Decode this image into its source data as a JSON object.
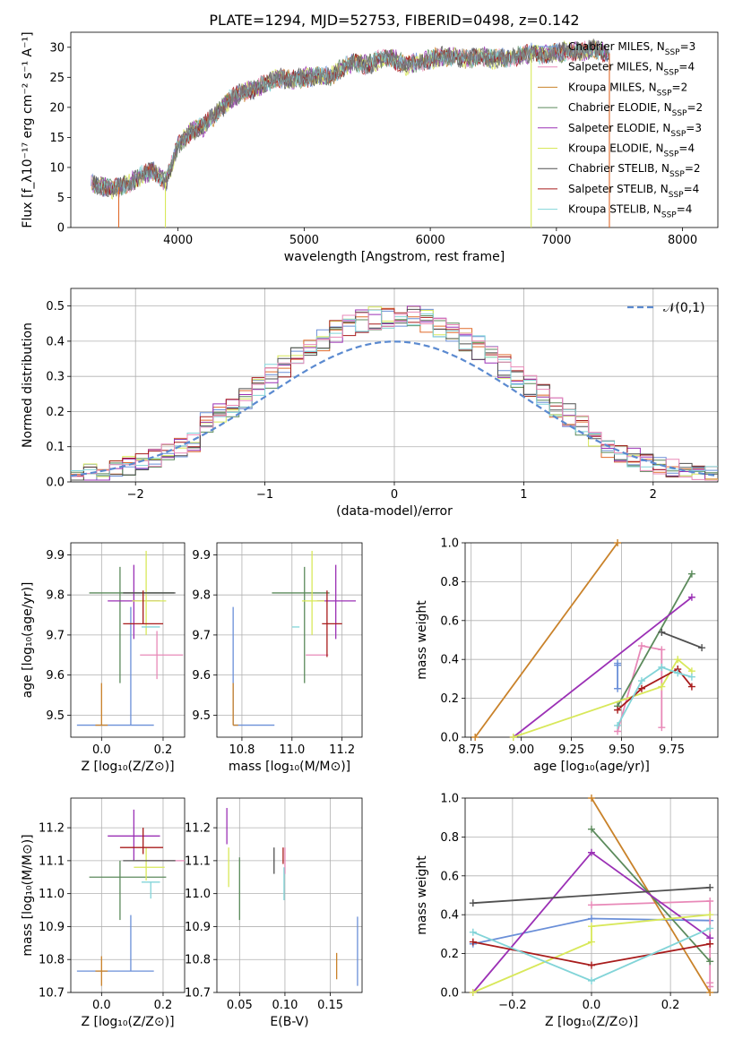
{
  "chart_data": [
    {
      "id": "spectrum",
      "type": "line",
      "title": "PLATE=1294, MJD=52753, FIBERID=0498, z=0.142",
      "xlabel": "wavelength [Angstrom, rest frame]",
      "ylabel": "Flux [f_λ10⁻¹⁷ erg cm⁻² s⁻¹ A⁻¹]",
      "xlim": [
        3150,
        8280
      ],
      "ylim": [
        0,
        32.5
      ],
      "xticks": [
        4000,
        5000,
        6000,
        7000,
        8000
      ],
      "yticks": [
        0,
        5,
        10,
        15,
        20,
        25,
        30
      ],
      "grid": false,
      "legend_position": "right",
      "legend": [
        {
          "label": "Chabrier MILES, N_SSP=3",
          "main": "Chabrier MILES, N",
          "sub": "SSP",
          "suffix": "=3",
          "color": "#6a8fd8"
        },
        {
          "label": "Salpeter MILES, N_SSP=4",
          "main": "Salpeter MILES, N",
          "sub": "SSP",
          "suffix": "=4",
          "color": "#e889b8"
        },
        {
          "label": "Kroupa MILES, N_SSP=2",
          "main": "Kroupa MILES, N",
          "sub": "SSP",
          "suffix": "=2",
          "color": "#c9822a"
        },
        {
          "label": "Chabrier ELODIE, N_SSP=2",
          "main": "Chabrier ELODIE, N",
          "sub": "SSP",
          "suffix": "=2",
          "color": "#5b8a5b"
        },
        {
          "label": "Salpeter ELODIE, N_SSP=3",
          "main": "Salpeter ELODIE, N",
          "sub": "SSP",
          "suffix": "=3",
          "color": "#9b30b5"
        },
        {
          "label": "Kroupa ELODIE, N_SSP=4",
          "main": "Kroupa ELODIE, N",
          "sub": "SSP",
          "suffix": "=4",
          "color": "#d8e85a"
        },
        {
          "label": "Chabrier STELIB, N_SSP=2",
          "main": "Chabrier STELIB, N",
          "sub": "SSP",
          "suffix": "=2",
          "color": "#505050"
        },
        {
          "label": "Salpeter STELIB, N_SSP=4",
          "main": "Salpeter STELIB, N",
          "sub": "SSP",
          "suffix": "=4",
          "color": "#a81c1c"
        },
        {
          "label": "Kroupa STELIB, N_SSP=4",
          "main": "Kroupa STELIB, N",
          "sub": "SSP",
          "suffix": "=4",
          "color": "#82d4d8"
        }
      ],
      "data_x": [
        3300,
        3400,
        3500,
        3600,
        3700,
        3800,
        3900,
        4000,
        4100,
        4200,
        4300,
        4400,
        4500,
        4600,
        4700,
        4800,
        4900,
        5000,
        5100,
        5200,
        5300,
        5400,
        5500,
        5600,
        5700,
        5800,
        5900,
        6000,
        6100,
        6200,
        6300,
        6400,
        6500,
        6600,
        6700,
        6800,
        6900,
        7000,
        7100,
        7200,
        7300,
        7400
      ],
      "data_y": [
        7.3,
        6.8,
        6.5,
        7.2,
        8.5,
        9.5,
        7.5,
        13.5,
        16.0,
        16.8,
        19.0,
        21.0,
        22.5,
        23.0,
        24.0,
        25.0,
        24.5,
        25.0,
        25.2,
        25.0,
        26.5,
        27.5,
        27.0,
        28.0,
        28.2,
        27.0,
        27.5,
        28.0,
        28.5,
        28.5,
        28.0,
        28.5,
        28.0,
        28.3,
        28.5,
        29.0,
        28.8,
        29.0,
        29.5,
        29.2,
        29.8,
        29.0
      ]
    },
    {
      "id": "residuals",
      "type": "histogram",
      "xlabel": "(data-model)/error",
      "ylabel": "Normed distribution",
      "xlim": [
        -2.5,
        2.5
      ],
      "ylim": [
        0,
        0.55
      ],
      "xticks": [
        -2,
        -1,
        0,
        1,
        2
      ],
      "yticks": [
        0.0,
        0.1,
        0.2,
        0.3,
        0.4,
        0.5
      ],
      "grid": true,
      "legend_position": "top-right",
      "legend": [
        {
          "label": "𝒩(0,1)",
          "style": "dashed",
          "color": "#5b8ad0"
        }
      ],
      "bin_width": 0.1
    },
    {
      "id": "age-vs-z",
      "type": "scatter",
      "xlabel": "Z [log₁₀(Z/Z⊙)]",
      "ylabel": "age  [log₁₀(age/yr)]",
      "xlim": [
        -0.1,
        0.27
      ],
      "ylim": [
        9.445,
        9.93
      ],
      "xticks": [
        0.0,
        0.2
      ],
      "yticks": [
        9.5,
        9.6,
        9.7,
        9.8,
        9.9
      ],
      "grid": true,
      "points": [
        {
          "model": "Chabrier MILES",
          "x": 0.095,
          "y": 9.475,
          "xerr": [
            0.175,
            0.075
          ],
          "yerr": [
            0.0,
            0.295
          ]
        },
        {
          "model": "Salpeter MILES",
          "x": 0.18,
          "y": 9.65,
          "xerr": [
            0.055,
            0.085
          ],
          "yerr": [
            0.06,
            0.06
          ]
        },
        {
          "model": "Kroupa MILES",
          "x": 0.0,
          "y": 9.475,
          "xerr": [
            0.02,
            0.02
          ],
          "yerr": [
            0.0,
            0.105
          ]
        },
        {
          "model": "Chabrier ELODIE",
          "x": 0.06,
          "y": 9.805,
          "xerr": [
            0.1,
            0.175
          ],
          "yerr": [
            0.225,
            0.065
          ]
        },
        {
          "model": "Salpeter ELODIE",
          "x": 0.105,
          "y": 9.785,
          "xerr": [
            0.085,
            0.085
          ],
          "yerr": [
            0.095,
            0.09
          ]
        },
        {
          "model": "Kroupa ELODIE",
          "x": 0.145,
          "y": 9.785,
          "xerr": [
            0.045,
            0.065
          ],
          "yerr": [
            0.085,
            0.125
          ]
        },
        {
          "model": "Chabrier STELIB",
          "x": 0.17,
          "y": 9.805,
          "xerr": [
            0.1,
            0.07
          ],
          "yerr": [
            0.0,
            0.0
          ]
        },
        {
          "model": "Salpeter STELIB",
          "x": 0.135,
          "y": 9.728,
          "xerr": [
            0.065,
            0.065
          ],
          "yerr": [
            0.0,
            0.083
          ]
        },
        {
          "model": "Kroupa STELIB",
          "x": 0.16,
          "y": 9.72,
          "xerr": [
            0.03,
            0.03
          ],
          "yerr": [
            0.0,
            0.0
          ]
        }
      ]
    },
    {
      "id": "age-vs-mass",
      "type": "scatter",
      "xlabel": "mass [log₁₀(M/M⊙)]",
      "ylabel": "",
      "xlim": [
        10.7,
        11.28
      ],
      "ylim": [
        9.445,
        9.93
      ],
      "xticks": [
        10.8,
        11.0,
        11.2
      ],
      "yticks": [
        9.5,
        9.6,
        9.7,
        9.8,
        9.9
      ],
      "grid": true,
      "points": [
        {
          "model": "Chabrier MILES",
          "x": 10.765,
          "y": 9.475,
          "xerr": [
            0.0,
            0.165
          ],
          "yerr": [
            0.0,
            0.295
          ]
        },
        {
          "model": "Salpeter MILES",
          "x": 11.1,
          "y": 9.65,
          "xerr": [
            0.045,
            0.045
          ],
          "yerr": [
            0.0,
            0.0
          ]
        },
        {
          "model": "Kroupa MILES",
          "x": 10.765,
          "y": 9.475,
          "xerr": [
            0.0,
            0.02
          ],
          "yerr": [
            0.0,
            0.105
          ]
        },
        {
          "model": "Chabrier ELODIE",
          "x": 11.05,
          "y": 9.805,
          "xerr": [
            0.13,
            0.1
          ],
          "yerr": [
            0.225,
            0.065
          ]
        },
        {
          "model": "Salpeter ELODIE",
          "x": 11.175,
          "y": 9.785,
          "xerr": [
            0.075,
            0.08
          ],
          "yerr": [
            0.095,
            0.09
          ]
        },
        {
          "model": "Kroupa ELODIE",
          "x": 11.08,
          "y": 9.785,
          "xerr": [
            0.04,
            0.05
          ],
          "yerr": [
            0.085,
            0.125
          ]
        },
        {
          "model": "Chabrier STELIB",
          "x": 11.1,
          "y": 9.805,
          "xerr": [
            0.0,
            0.0
          ],
          "yerr": [
            0.0,
            0.0
          ]
        },
        {
          "model": "Salpeter STELIB",
          "x": 11.14,
          "y": 9.728,
          "xerr": [
            0.02,
            0.06
          ],
          "yerr": [
            0.083,
            0.083
          ]
        },
        {
          "model": "Kroupa STELIB",
          "x": 11.03,
          "y": 9.72,
          "xerr": [
            0.03,
            0.0
          ],
          "yerr": [
            0.0,
            0.0
          ]
        }
      ]
    },
    {
      "id": "massweight-vs-age",
      "type": "line",
      "xlabel": "age  [log₁₀(age/yr)]",
      "ylabel": "mass weight",
      "xlim": [
        8.72,
        9.98
      ],
      "ylim": [
        0,
        1
      ],
      "xticks": [
        8.75,
        9.0,
        9.25,
        9.5,
        9.75
      ],
      "yticks": [
        0.0,
        0.2,
        0.4,
        0.6,
        0.8,
        1.0
      ],
      "grid": true,
      "series": [
        {
          "name": "Chabrier MILES",
          "x": [
            9.48,
            9.48,
            9.48
          ],
          "y": [
            0.25,
            0.37,
            0.38
          ]
        },
        {
          "name": "Salpeter MILES",
          "x": [
            9.48,
            9.6,
            9.7,
            9.7
          ],
          "y": [
            0.03,
            0.47,
            0.45,
            0.05
          ]
        },
        {
          "name": "Kroupa MILES",
          "x": [
            8.77,
            9.48
          ],
          "y": [
            0.0,
            1.0
          ]
        },
        {
          "name": "Chabrier ELODIE",
          "x": [
            9.48,
            9.85
          ],
          "y": [
            0.16,
            0.84
          ]
        },
        {
          "name": "Salpeter ELODIE",
          "x": [
            8.96,
            9.85
          ],
          "y": [
            0.0,
            0.72
          ]
        },
        {
          "name": "Kroupa ELODIE",
          "x": [
            8.96,
            9.7,
            9.78,
            9.85
          ],
          "y": [
            0.0,
            0.26,
            0.4,
            0.34
          ]
        },
        {
          "name": "Chabrier STELIB",
          "x": [
            9.7,
            9.9
          ],
          "y": [
            0.54,
            0.46
          ]
        },
        {
          "name": "Salpeter STELIB",
          "x": [
            9.48,
            9.6,
            9.78,
            9.85
          ],
          "y": [
            0.14,
            0.25,
            0.35,
            0.26
          ]
        },
        {
          "name": "Kroupa STELIB",
          "x": [
            9.48,
            9.6,
            9.7,
            9.78,
            9.85
          ],
          "y": [
            0.06,
            0.29,
            0.36,
            0.33,
            0.31
          ]
        }
      ]
    },
    {
      "id": "mass-vs-z",
      "type": "scatter",
      "xlabel": "Z [log₁₀(Z/Z⊙)]",
      "ylabel": "mass [log₁₀(M/M⊙)]",
      "xlim": [
        -0.1,
        0.27
      ],
      "ylim": [
        10.7,
        11.29
      ],
      "xticks": [
        0.0,
        0.2
      ],
      "yticks": [
        10.7,
        10.8,
        10.9,
        11.0,
        11.1,
        11.2
      ],
      "grid": true,
      "points": [
        {
          "model": "Chabrier MILES",
          "x": 0.095,
          "y": 10.765,
          "xerr": [
            0.175,
            0.075
          ],
          "yerr": [
            0.0,
            0.17
          ]
        },
        {
          "model": "Salpeter MILES",
          "x": 0.18,
          "y": 11.1,
          "xerr": [
            0.07,
            0.09
          ],
          "yerr": [
            0.0,
            0.0
          ]
        },
        {
          "model": "Kroupa MILES",
          "x": 0.0,
          "y": 10.765,
          "xerr": [
            0.02,
            0.02
          ],
          "yerr": [
            0.045,
            0.045
          ]
        },
        {
          "model": "Chabrier ELODIE",
          "x": 0.06,
          "y": 11.05,
          "xerr": [
            0.1,
            0.15
          ],
          "yerr": [
            0.13,
            0.05
          ]
        },
        {
          "model": "Salpeter ELODIE",
          "x": 0.105,
          "y": 11.175,
          "xerr": [
            0.085,
            0.085
          ],
          "yerr": [
            0.075,
            0.08
          ]
        },
        {
          "model": "Kroupa ELODIE",
          "x": 0.145,
          "y": 11.08,
          "xerr": [
            0.04,
            0.06
          ],
          "yerr": [
            0.04,
            0.06
          ]
        },
        {
          "model": "Chabrier STELIB",
          "x": 0.17,
          "y": 11.1,
          "xerr": [
            0.1,
            0.07
          ],
          "yerr": [
            0.0,
            0.0
          ]
        },
        {
          "model": "Salpeter STELIB",
          "x": 0.135,
          "y": 11.14,
          "xerr": [
            0.075,
            0.065
          ],
          "yerr": [
            0.02,
            0.06
          ]
        },
        {
          "model": "Kroupa STELIB",
          "x": 0.16,
          "y": 11.035,
          "xerr": [
            0.03,
            0.03
          ],
          "yerr": [
            0.05,
            0.0
          ]
        }
      ]
    },
    {
      "id": "mass-vs-ebv",
      "type": "scatter",
      "xlabel": "E(B-V)",
      "ylabel": "",
      "xlim": [
        0.025,
        0.185
      ],
      "ylim": [
        10.7,
        11.29
      ],
      "xticks": [
        0.05,
        0.1,
        0.15
      ],
      "yticks": [
        10.7,
        10.8,
        10.9,
        11.0,
        11.1,
        11.2
      ],
      "grid": true,
      "points": [
        {
          "model": "Chabrier MILES",
          "x": 0.18,
          "y": 10.82,
          "xerr": [
            0.0,
            0.0
          ],
          "yerr": [
            0.1,
            0.11
          ]
        },
        {
          "model": "Salpeter MILES",
          "x": 0.1,
          "y": 11.1,
          "xerr": [
            0.0,
            0.0
          ],
          "yerr": [
            0.04,
            0.04
          ]
        },
        {
          "model": "Kroupa MILES",
          "x": 0.157,
          "y": 10.78,
          "xerr": [
            0.0,
            0.0
          ],
          "yerr": [
            0.04,
            0.04
          ]
        },
        {
          "model": "Chabrier ELODIE",
          "x": 0.05,
          "y": 11.02,
          "xerr": [
            0.0,
            0.0
          ],
          "yerr": [
            0.1,
            0.09
          ]
        },
        {
          "model": "Salpeter ELODIE",
          "x": 0.036,
          "y": 11.2,
          "xerr": [
            0.0,
            0.0
          ],
          "yerr": [
            0.05,
            0.06
          ]
        },
        {
          "model": "Kroupa ELODIE",
          "x": 0.038,
          "y": 11.08,
          "xerr": [
            0.0,
            0.0
          ],
          "yerr": [
            0.06,
            0.06
          ]
        },
        {
          "model": "Chabrier STELIB",
          "x": 0.088,
          "y": 11.1,
          "xerr": [
            0.0,
            0.0
          ],
          "yerr": [
            0.04,
            0.04
          ]
        },
        {
          "model": "Salpeter STELIB",
          "x": 0.098,
          "y": 11.12,
          "xerr": [
            0.0,
            0.0
          ],
          "yerr": [
            0.03,
            0.02
          ]
        },
        {
          "model": "Kroupa STELIB",
          "x": 0.099,
          "y": 11.03,
          "xerr": [
            0.0,
            0.0
          ],
          "yerr": [
            0.05,
            0.05
          ]
        }
      ]
    },
    {
      "id": "massweight-vs-z",
      "type": "line",
      "xlabel": "Z [log₁₀(Z/Z⊙)]",
      "ylabel": "mass weight",
      "xlim": [
        -0.32,
        0.32
      ],
      "ylim": [
        0,
        1
      ],
      "xticks": [
        -0.2,
        0.0,
        0.2
      ],
      "yticks": [
        0.0,
        0.2,
        0.4,
        0.6,
        0.8,
        1.0
      ],
      "grid": true,
      "series": [
        {
          "name": "Chabrier MILES",
          "x": [
            -0.3,
            0.0,
            0.3
          ],
          "y": [
            0.25,
            0.38,
            0.37
          ]
        },
        {
          "name": "Salpeter MILES",
          "x": [
            0.0,
            0.3,
            0.3,
            0.3
          ],
          "y": [
            0.45,
            0.47,
            0.05,
            0.03
          ]
        },
        {
          "name": "Kroupa MILES",
          "x": [
            0.0,
            0.3
          ],
          "y": [
            1.0,
            0.0
          ]
        },
        {
          "name": "Chabrier ELODIE",
          "x": [
            0.0,
            0.3
          ],
          "y": [
            0.84,
            0.16
          ]
        },
        {
          "name": "Salpeter ELODIE",
          "x": [
            -0.3,
            0.0,
            0.3
          ],
          "y": [
            0.0,
            0.72,
            0.28
          ]
        },
        {
          "name": "Kroupa ELODIE",
          "x": [
            -0.3,
            0.0,
            0.0,
            0.3
          ],
          "y": [
            0.0,
            0.26,
            0.34,
            0.4
          ]
        },
        {
          "name": "Chabrier STELIB",
          "x": [
            -0.3,
            0.3
          ],
          "y": [
            0.46,
            0.54
          ]
        },
        {
          "name": "Salpeter STELIB",
          "x": [
            -0.3,
            0.0,
            0.3
          ],
          "y": [
            0.26,
            0.14,
            0.25
          ]
        },
        {
          "name": "Kroupa STELIB",
          "x": [
            -0.3,
            0.0,
            0.3
          ],
          "y": [
            0.31,
            0.06,
            0.33
          ]
        }
      ]
    }
  ]
}
